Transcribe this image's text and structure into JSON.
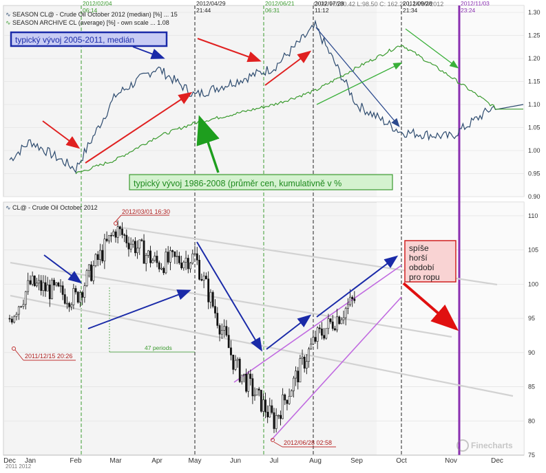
{
  "header": {
    "ohlc_text": "O:99.    H:100.42   L:98.50   C:      162.2k   L      14/09/2012"
  },
  "top_panel": {
    "legend": [
      {
        "label": "SEASON CL@ - Crude Oil October 2012 (median) [%] ... 15",
        "color": "#2c4a6e"
      },
      {
        "label": "SEASON ARCHIVE CL (average) [%] - own scale ... 1.08",
        "color": "#3a9a2e"
      }
    ],
    "annotation_median": "typický vývoj 2005-2011, medián",
    "annotation_average": "typický vývoj 1986-2008 (průměr cen, kumulativně v %",
    "yticks": [
      "1.30",
      "1.25",
      "1.20",
      "1.15",
      "1.10",
      "1.05",
      "1.00",
      "0.95",
      "0.90"
    ]
  },
  "bottom_panel": {
    "legend": "CL@ - Crude Oil October 2012",
    "yticks": [
      "110",
      "105",
      "100",
      "95",
      "90",
      "85",
      "80",
      "75"
    ],
    "callouts": [
      "2012/03/01 16:30",
      "2011/12/15 20:26",
      "2012/06/28 02:58",
      "47 periods"
    ],
    "note": {
      "line1": "spíše",
      "line2": "horší",
      "line3": "období",
      "line4": "pro ropu"
    },
    "watermark": "Finecharts"
  },
  "vlines": [
    {
      "date": "2012/02/04",
      "time": "06:14",
      "color": "#3a9a2e"
    },
    {
      "date": "2012/04/29",
      "time": "21:44",
      "color": "#222222"
    },
    {
      "date": "2012/06/21",
      "time": "06:31",
      "color": "#3a9a2e"
    },
    {
      "date": "2012/07/28",
      "time": "11:12",
      "color": "#222222"
    },
    {
      "date": "2012/09/28",
      "time": "21:34",
      "color": "#222222"
    },
    {
      "date": "2012/11/03",
      "time": "23:24",
      "color": "#8a2fb0"
    }
  ],
  "xaxis": {
    "labels": [
      "Dec",
      "Jan",
      "Feb",
      "Mar",
      "Apr",
      "May",
      "Jun",
      "Jul",
      "Aug",
      "Sep",
      "Oct",
      "Nov",
      "Dec"
    ],
    "sublabel": "2011    2012"
  },
  "chart_data": [
    {
      "type": "line",
      "xlabel": "",
      "ylabel": "",
      "ylim": [
        0.9,
        1.3
      ],
      "x": [
        "Dec",
        "Jan",
        "Feb",
        "Mar",
        "Apr",
        "May",
        "Jun",
        "Jul",
        "Aug",
        "Sep",
        "Oct",
        "Nov",
        "Dec"
      ],
      "series": [
        {
          "name": "SEASON CL@ - Crude Oil October 2012 (median) [%] ... 15",
          "values": [
            0.98,
            1.02,
            0.96,
            1.12,
            1.18,
            1.12,
            1.15,
            1.18,
            1.27,
            1.1,
            1.04,
            1.03,
            1.1
          ]
        },
        {
          "name": "SEASON ARCHIVE CL (average) [%] - own scale ... 1.08",
          "values": [
            null,
            null,
            0.95,
            0.98,
            1.03,
            1.06,
            1.08,
            1.1,
            1.13,
            1.18,
            1.23,
            1.16,
            1.09
          ]
        }
      ]
    },
    {
      "type": "bar",
      "title": "CL@ - Crude Oil October 2012",
      "xlabel": "",
      "ylabel": "",
      "ylim": [
        75,
        112
      ],
      "categories": [
        "Dec",
        "Jan",
        "Feb",
        "Mar",
        "Apr",
        "May",
        "Jun",
        "Jul",
        "Aug",
        "Sep"
      ],
      "values": [
        95,
        100,
        98,
        108,
        103,
        104,
        88,
        80,
        92,
        98
      ],
      "annotations": [
        "2012/03/01 16:30",
        "2011/12/15 20:26",
        "2012/06/28 02:58",
        "47 periods"
      ]
    }
  ]
}
